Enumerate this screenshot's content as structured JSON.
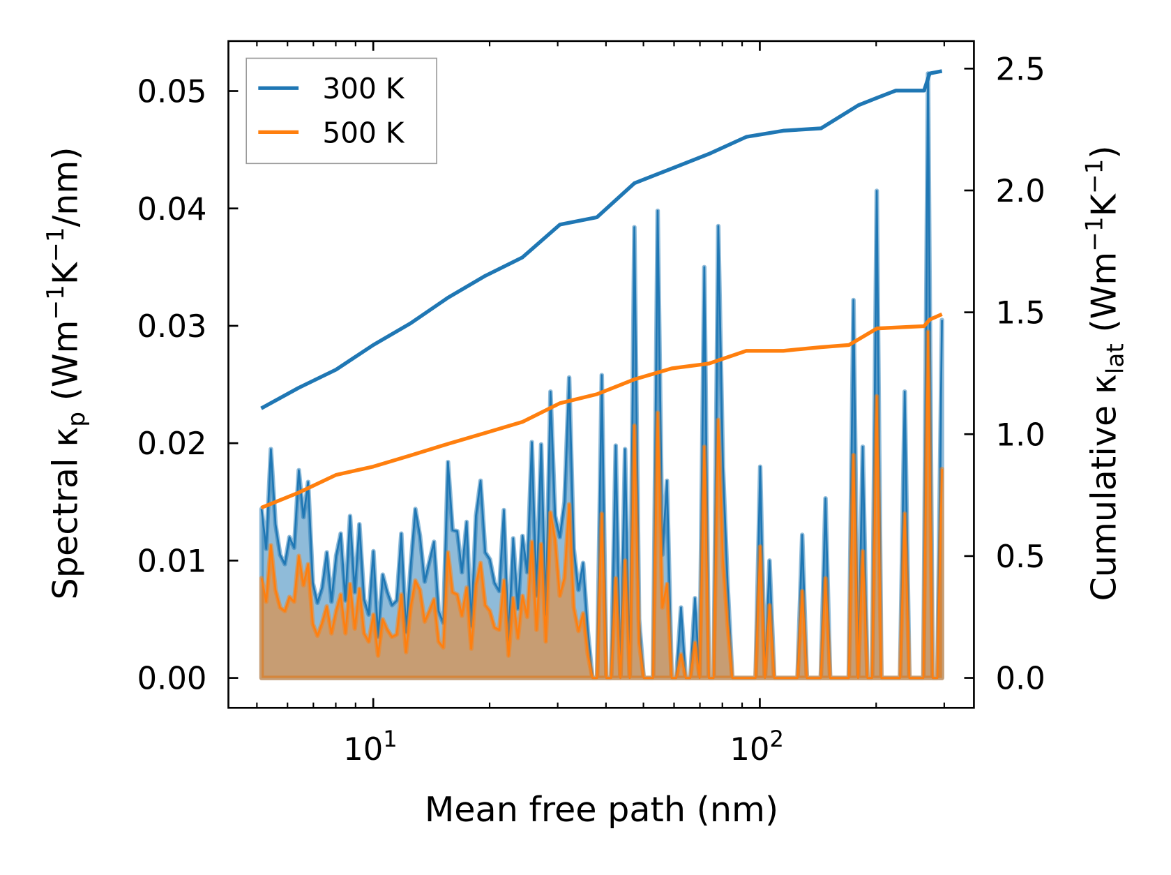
{
  "chart_data": {
    "type": "line",
    "title": "",
    "xlabel": "Mean free path (nm)",
    "xscale": "log",
    "xlim": [
      4.22,
      358
    ],
    "ylim_left": [
      -0.00254,
      0.05426
    ],
    "ylim_right": [
      -0.1225,
      2.613
    ],
    "x_ticks": [
      {
        "value": 10,
        "base": "10",
        "exp": "1"
      },
      {
        "value": 100,
        "base": "10",
        "exp": "2"
      }
    ],
    "y_left_ticks": [
      {
        "value": 0.0,
        "label": "0.00"
      },
      {
        "value": 0.01,
        "label": "0.01"
      },
      {
        "value": 0.02,
        "label": "0.02"
      },
      {
        "value": 0.03,
        "label": "0.03"
      },
      {
        "value": 0.04,
        "label": "0.04"
      },
      {
        "value": 0.05,
        "label": "0.05"
      }
    ],
    "y_right_ticks": [
      {
        "value": 0.0,
        "label": "0.0"
      },
      {
        "value": 0.5,
        "label": "0.5"
      },
      {
        "value": 1.0,
        "label": "1.0"
      },
      {
        "value": 1.5,
        "label": "1.5"
      },
      {
        "value": 2.0,
        "label": "2.0"
      },
      {
        "value": 2.5,
        "label": "2.5"
      }
    ],
    "ylabel_left": {
      "a": "Spectral κ",
      "sub": "p",
      "b": " (Wm",
      "sup1": "−1",
      "c": "K",
      "sup2": "−1",
      "d": "/nm)"
    },
    "ylabel_right": {
      "a": "Cumulative κ",
      "sub": "lat",
      "b": " (Wm",
      "sup1": "−1",
      "c": "K",
      "sup2": "−1",
      "d": ")"
    },
    "legend": {
      "placement": "upper-left",
      "entries": [
        "300 K",
        "500 K"
      ]
    },
    "grid": false,
    "spectral_grid": {
      "mfp_nm_first": 5.14,
      "mfp_nm_last": 296,
      "spacing": "log-uniform"
    },
    "series": [
      {
        "name": "300 K",
        "color": "#1f77b4",
        "spectral_kp": [
          0.0144,
          0.011,
          0.0195,
          0.0131,
          0.0105,
          0.0097,
          0.012,
          0.0111,
          0.0177,
          0.0137,
          0.0167,
          0.0081,
          0.0064,
          0.0077,
          0.0107,
          0.0065,
          0.0104,
          0.0123,
          0.0066,
          0.0138,
          0.0073,
          0.0131,
          0.0067,
          0.0054,
          0.0108,
          0.0035,
          0.0088,
          0.0073,
          0.0062,
          0.0066,
          0.0123,
          0.0039,
          0.0095,
          0.0144,
          0.0121,
          0.0082,
          0.0099,
          0.0116,
          0.0057,
          0.0047,
          0.0184,
          0.0126,
          0.0125,
          0.009,
          0.0133,
          0.0044,
          0.0138,
          0.0168,
          0.0107,
          0.0101,
          0.0081,
          0.0074,
          0.0143,
          0.0032,
          0.0119,
          0.0059,
          0.0121,
          0.009,
          0.0201,
          0.007,
          0.0199,
          0.0054,
          0.0244,
          0.0138,
          0.012,
          0.015,
          0.0256,
          0.011,
          0.0075,
          0.0098,
          0.004,
          0,
          0,
          0.0258,
          0,
          0,
          0.0198,
          0,
          0.0195,
          0,
          0.0384,
          0.005,
          0,
          0,
          0,
          0.0398,
          0.0105,
          0.0168,
          0,
          0,
          0.006,
          0,
          0,
          0.0068,
          0,
          0.035,
          0,
          0,
          0.0385,
          0.018,
          0.008,
          0,
          0,
          0,
          0,
          0,
          0,
          0.018,
          0,
          0.01,
          0,
          0,
          0,
          0,
          0,
          0,
          0.0122,
          0,
          0,
          0,
          0,
          0.0153,
          0,
          0,
          0,
          0,
          0,
          0.0322,
          0,
          0.0197,
          0,
          0,
          0.0415,
          0,
          0,
          0,
          0,
          0,
          0.0244,
          0,
          0,
          0,
          0,
          0.0515,
          0,
          0,
          0.0305
        ],
        "cumulative": {
          "x": [
            5.13,
            6.41,
            8.01,
            10,
            12.49,
            15.6,
            19.5,
            24.3,
            30.4,
            37.9,
            47.4,
            59.2,
            73.9,
            92.3,
            115,
            144,
            180,
            201,
            225,
            266,
            275,
            296
          ],
          "y": [
            1.106,
            1.19,
            1.265,
            1.366,
            1.455,
            1.56,
            1.65,
            1.725,
            1.86,
            1.89,
            2.03,
            2.09,
            2.15,
            2.22,
            2.245,
            2.255,
            2.35,
            2.38,
            2.41,
            2.41,
            2.48,
            2.49
          ]
        }
      },
      {
        "name": "500 K",
        "color": "#ff7f0e",
        "spectral_kp": [
          0.0085,
          0.0065,
          0.0113,
          0.0075,
          0.006,
          0.0057,
          0.0069,
          0.0065,
          0.0104,
          0.0079,
          0.0097,
          0.0046,
          0.0036,
          0.0047,
          0.0061,
          0.0038,
          0.0057,
          0.0071,
          0.0038,
          0.008,
          0.0042,
          0.0076,
          0.0038,
          0.0031,
          0.0054,
          0.0019,
          0.005,
          0.0041,
          0.0035,
          0.0037,
          0.0071,
          0.0022,
          0.006,
          0.0083,
          0.0075,
          0.0048,
          0.0057,
          0.0067,
          0.0031,
          0.0026,
          0.0107,
          0.0073,
          0.0071,
          0.0053,
          0.0077,
          0.0025,
          0.0079,
          0.0098,
          0.0062,
          0.0057,
          0.0043,
          0.0041,
          0.0083,
          0.0019,
          0.0068,
          0.0034,
          0.007,
          0.0052,
          0.0116,
          0.0041,
          0.0114,
          0.0031,
          0.0141,
          0.0118,
          0.007,
          0.0085,
          0.0148,
          0.006,
          0.004,
          0.0055,
          0.002,
          0,
          0,
          0.014,
          0,
          0,
          0.0085,
          0,
          0.01,
          0,
          0.0215,
          0.003,
          0,
          0,
          0,
          0.0226,
          0.006,
          0.008,
          0,
          0,
          0.002,
          0,
          0,
          0.003,
          0,
          0.0197,
          0,
          0,
          0.022,
          0.01,
          0.0045,
          0,
          0,
          0,
          0,
          0,
          0,
          0.0112,
          0,
          0.0062,
          0,
          0,
          0,
          0,
          0,
          0,
          0.0074,
          0,
          0,
          0,
          0,
          0.0085,
          0,
          0,
          0,
          0,
          0,
          0.019,
          0,
          0.0108,
          0,
          0,
          0.024,
          0,
          0,
          0,
          0,
          0,
          0.014,
          0,
          0,
          0,
          0,
          0.0295,
          0,
          0,
          0.0178
        ],
        "cumulative": {
          "x": [
            5.13,
            6.41,
            8.01,
            10,
            12.49,
            15.6,
            19.5,
            24.3,
            30.4,
            37.9,
            47.4,
            59.2,
            73.9,
            92.3,
            115,
            144,
            170,
            201,
            266,
            275,
            296
          ],
          "y": [
            0.698,
            0.76,
            0.833,
            0.867,
            0.913,
            0.96,
            1.005,
            1.05,
            1.127,
            1.164,
            1.225,
            1.27,
            1.29,
            1.342,
            1.342,
            1.357,
            1.366,
            1.434,
            1.443,
            1.47,
            1.492
          ]
        }
      }
    ]
  }
}
